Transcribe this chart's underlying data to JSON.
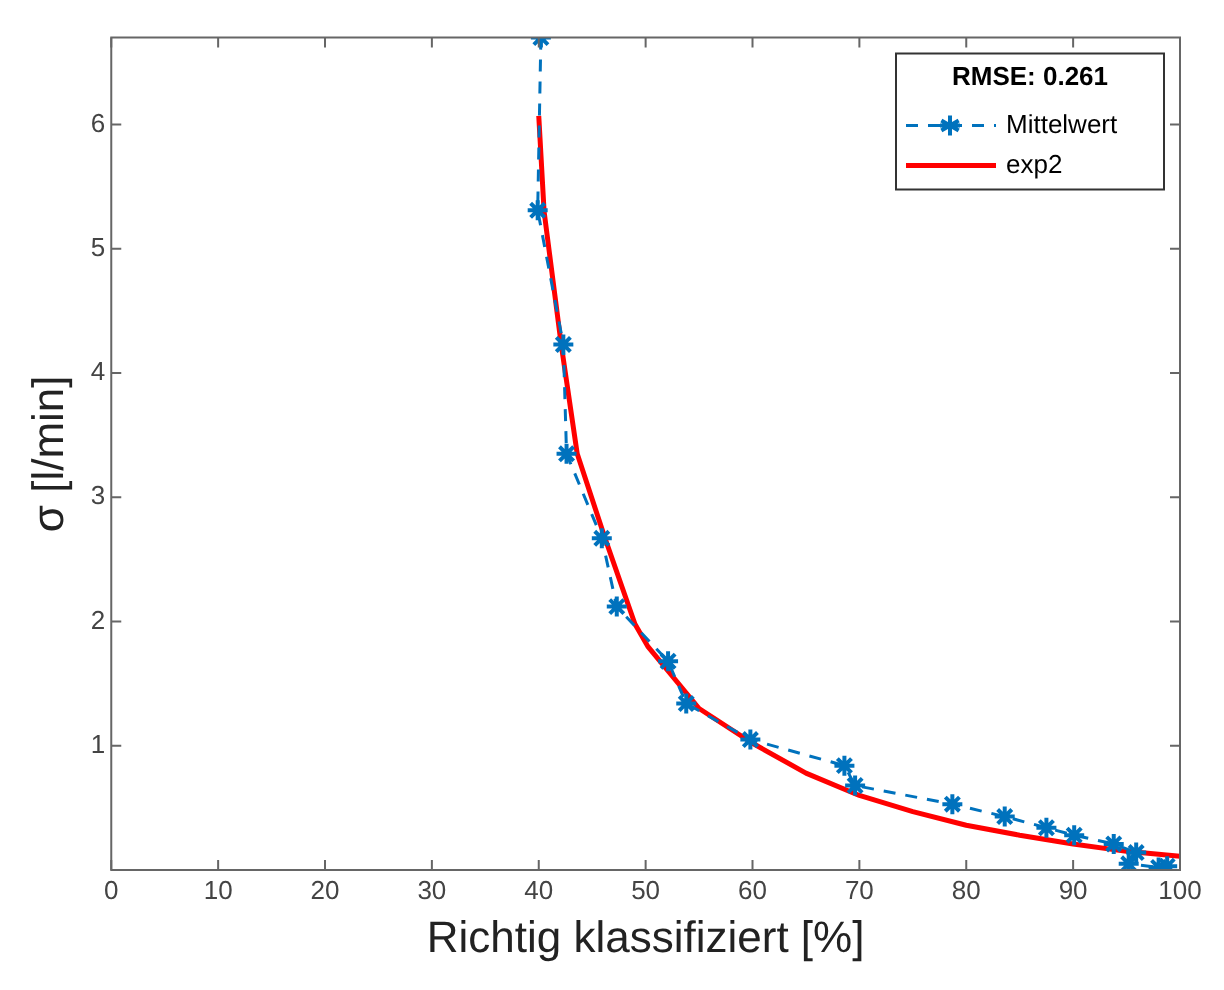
{
  "chart_data": {
    "type": "line",
    "xlabel": "Richtig klassifiziert [%]",
    "ylabel": "σ [l/min]",
    "legend_title": "RMSE: 0.261",
    "legend": "top right",
    "grid": false,
    "xlim": [
      0,
      100
    ],
    "xticks": [
      0,
      10,
      20,
      30,
      40,
      50,
      60,
      70,
      80,
      90,
      100
    ],
    "ylim": [
      0,
      6.7
    ],
    "yticks": [
      1,
      2,
      3,
      4,
      5,
      6
    ],
    "series": [
      {
        "name": "Mittelwert",
        "color": "#0072bd",
        "marker": "cross",
        "line_style": "dashed",
        "x": [
          40.2,
          39.9,
          42.3,
          42.6,
          45.9,
          47.3,
          52.1,
          53.8,
          59.8,
          68.6,
          69.6,
          78.7,
          83.6,
          87.5,
          90.1,
          93.8,
          95.9,
          95.2,
          98,
          98.8
        ],
        "values": [
          6.7,
          5.31,
          4.23,
          3.35,
          2.67,
          2.12,
          1.68,
          1.34,
          1.05,
          0.84,
          0.68,
          0.53,
          0.43,
          0.34,
          0.28,
          0.21,
          0.14,
          0.05,
          0.02,
          0.03
        ]
      },
      {
        "name": "exp2",
        "color": "#ff0000",
        "marker": "none",
        "line_style": "solid",
        "x": [
          40,
          40.5,
          42.1,
          43.6,
          46.2,
          49,
          50.2,
          55,
          60,
          65,
          70,
          75,
          80,
          85,
          90,
          95,
          100
        ],
        "values": [
          6.07,
          5.3,
          4.23,
          3.35,
          2.67,
          1.98,
          1.8,
          1.3,
          1.02,
          0.78,
          0.6,
          0.47,
          0.36,
          0.28,
          0.21,
          0.15,
          0.11
        ]
      }
    ]
  }
}
